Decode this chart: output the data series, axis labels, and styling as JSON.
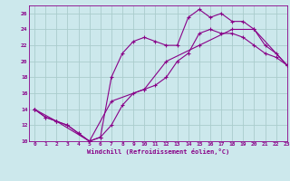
{
  "xlabel": "Windchill (Refroidissement éolien,°C)",
  "bg_color": "#cce8ec",
  "grid_color": "#aacccc",
  "line_color": "#880088",
  "line1_x": [
    0,
    1,
    2,
    3,
    4,
    5,
    6,
    7,
    8,
    9,
    10,
    11,
    12,
    13,
    14,
    15,
    16,
    17,
    18,
    19,
    20,
    21,
    22,
    23
  ],
  "line1_y": [
    14,
    13,
    12.5,
    12,
    11,
    10,
    10.5,
    12,
    14.5,
    16,
    16.5,
    17,
    18,
    20,
    21,
    23.5,
    24,
    23.5,
    23.5,
    23,
    22,
    21,
    20.5,
    19.5
  ],
  "line2_x": [
    0,
    1,
    2,
    3,
    4,
    5,
    6,
    7,
    8,
    9,
    10,
    11,
    12,
    13,
    14,
    15,
    16,
    17,
    18,
    19,
    20,
    21,
    22,
    23
  ],
  "line2_y": [
    14,
    13,
    12.5,
    12,
    11,
    10,
    10.5,
    18,
    21,
    22.5,
    23,
    22.5,
    22,
    22,
    25.5,
    26.5,
    25.5,
    26,
    25,
    25,
    24,
    22,
    21,
    19.5
  ],
  "line3_x": [
    0,
    2,
    5,
    7,
    10,
    12,
    15,
    18,
    20,
    23
  ],
  "line3_y": [
    14,
    12.5,
    10,
    15,
    16.5,
    20,
    22,
    24,
    24,
    19.5
  ],
  "ylim": [
    10,
    27
  ],
  "xlim": [
    -0.5,
    23
  ],
  "yticks": [
    10,
    12,
    14,
    16,
    18,
    20,
    22,
    24,
    26
  ],
  "xticks": [
    0,
    1,
    2,
    3,
    4,
    5,
    6,
    7,
    8,
    9,
    10,
    11,
    12,
    13,
    14,
    15,
    16,
    17,
    18,
    19,
    20,
    21,
    22,
    23
  ],
  "marker": "+"
}
